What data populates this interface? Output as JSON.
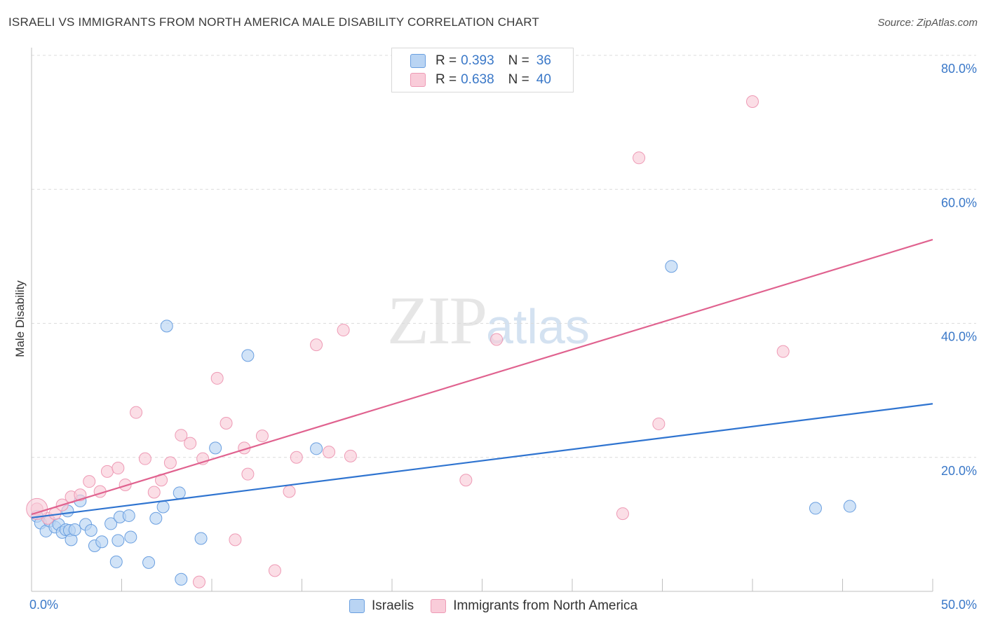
{
  "title": "ISRAELI VS IMMIGRANTS FROM NORTH AMERICA MALE DISABILITY CORRELATION CHART",
  "source": "Source: ZipAtlas.com",
  "watermark": {
    "zip": "ZIP",
    "atlas": "atlas"
  },
  "legend": {
    "rows": [
      {
        "r_label": "R =",
        "r_value": "0.393",
        "n_label": "N =",
        "n_value": "36",
        "color": "#a9c9f0"
      },
      {
        "r_label": "R =",
        "r_value": "0.638",
        "n_label": "N =",
        "n_value": "40",
        "color": "#f7bfd0"
      }
    ]
  },
  "bottom_legend": [
    {
      "label": "Israelis",
      "color": "#a9c9f0"
    },
    {
      "label": "Immigrants from North America",
      "color": "#f7bfd0"
    }
  ],
  "chart_data": {
    "type": "scatter",
    "title": "ISRAELI VS IMMIGRANTS FROM NORTH AMERICA MALE DISABILITY CORRELATION CHART",
    "xlabel": "",
    "ylabel": "Male Disability",
    "xlim": [
      0,
      50
    ],
    "ylim": [
      0,
      80
    ],
    "x_tick_labels": [
      "0.0%",
      "50.0%"
    ],
    "y_tick_labels": [
      "20.0%",
      "40.0%",
      "60.0%",
      "80.0%"
    ],
    "y_ticks": [
      20,
      40,
      60,
      80
    ],
    "grid": "horizontal-dashed",
    "series": [
      {
        "name": "Israelis",
        "color": "#6a9fe0",
        "fill": "#b9d4f3",
        "line_color": "#2f74d0",
        "trend": [
          [
            0,
            11.0
          ],
          [
            50,
            28.0
          ]
        ],
        "points": [
          [
            0.3,
            11.2
          ],
          [
            0.5,
            10.2
          ],
          [
            0.8,
            9.0
          ],
          [
            1.0,
            10.5
          ],
          [
            1.3,
            9.6
          ],
          [
            1.5,
            10.0
          ],
          [
            1.7,
            8.8
          ],
          [
            1.9,
            9.2
          ],
          [
            2.1,
            9.1
          ],
          [
            2.2,
            7.7
          ],
          [
            2.4,
            9.2
          ],
          [
            2.7,
            13.5
          ],
          [
            3.0,
            10.0
          ],
          [
            3.3,
            9.1
          ],
          [
            3.5,
            6.8
          ],
          [
            3.9,
            7.4
          ],
          [
            4.4,
            10.1
          ],
          [
            4.7,
            4.4
          ],
          [
            4.8,
            7.6
          ],
          [
            4.9,
            11.1
          ],
          [
            5.4,
            11.3
          ],
          [
            5.5,
            8.1
          ],
          [
            6.5,
            4.3
          ],
          [
            6.9,
            10.9
          ],
          [
            7.3,
            12.6
          ],
          [
            7.5,
            39.6
          ],
          [
            8.2,
            14.7
          ],
          [
            8.3,
            1.8
          ],
          [
            9.4,
            7.9
          ],
          [
            10.2,
            21.4
          ],
          [
            12.0,
            35.2
          ],
          [
            15.8,
            21.3
          ],
          [
            35.5,
            48.5
          ],
          [
            43.5,
            12.4
          ],
          [
            45.4,
            12.7
          ],
          [
            2.0,
            12.0
          ]
        ]
      },
      {
        "name": "Immigrants from North America",
        "color": "#ee9ab5",
        "fill": "#f9ccd9",
        "line_color": "#e0628f",
        "trend": [
          [
            0,
            11.5
          ],
          [
            50,
            52.5
          ]
        ],
        "points": [
          [
            0.3,
            12.3
          ],
          [
            0.9,
            10.9
          ],
          [
            1.3,
            11.6
          ],
          [
            1.7,
            12.9
          ],
          [
            2.2,
            14.1
          ],
          [
            2.7,
            14.4
          ],
          [
            3.2,
            16.4
          ],
          [
            3.8,
            14.9
          ],
          [
            4.2,
            17.9
          ],
          [
            4.8,
            18.4
          ],
          [
            5.2,
            15.9
          ],
          [
            5.8,
            26.7
          ],
          [
            6.3,
            19.8
          ],
          [
            6.8,
            14.8
          ],
          [
            7.2,
            16.6
          ],
          [
            7.7,
            19.2
          ],
          [
            8.3,
            23.3
          ],
          [
            8.8,
            22.1
          ],
          [
            9.3,
            1.4
          ],
          [
            9.5,
            19.8
          ],
          [
            10.3,
            31.8
          ],
          [
            10.8,
            25.1
          ],
          [
            11.3,
            7.7
          ],
          [
            11.8,
            21.4
          ],
          [
            12.0,
            17.5
          ],
          [
            12.8,
            23.2
          ],
          [
            13.5,
            3.1
          ],
          [
            14.3,
            14.9
          ],
          [
            14.7,
            20.0
          ],
          [
            15.8,
            36.8
          ],
          [
            16.5,
            20.8
          ],
          [
            17.3,
            39.0
          ],
          [
            17.7,
            20.2
          ],
          [
            24.1,
            16.6
          ],
          [
            25.8,
            37.6
          ],
          [
            32.8,
            11.6
          ],
          [
            33.7,
            64.7
          ],
          [
            34.8,
            25.0
          ],
          [
            40.0,
            73.1
          ],
          [
            41.7,
            35.8
          ]
        ]
      }
    ]
  }
}
